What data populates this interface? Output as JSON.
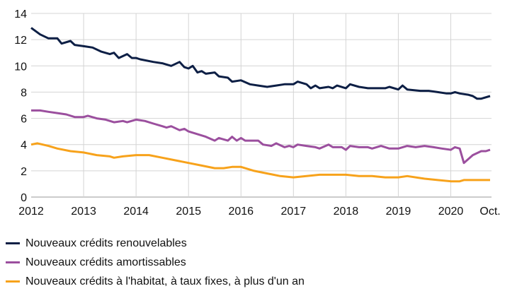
{
  "chart_data": {
    "type": "line",
    "title": "",
    "xlabel": "",
    "ylabel": "",
    "ylim": [
      0,
      14
    ],
    "xlim": [
      2012,
      2020.75
    ],
    "yticks": [
      0,
      2,
      4,
      6,
      8,
      10,
      12,
      14
    ],
    "xticks": [
      {
        "value": 2012,
        "label": "2012"
      },
      {
        "value": 2013,
        "label": "2013"
      },
      {
        "value": 2014,
        "label": "2014"
      },
      {
        "value": 2015,
        "label": "2015"
      },
      {
        "value": 2016,
        "label": "2016"
      },
      {
        "value": 2017,
        "label": "2017"
      },
      {
        "value": 2018,
        "label": "2018"
      },
      {
        "value": 2019,
        "label": "2019"
      },
      {
        "value": 2020,
        "label": "2020"
      },
      {
        "value": 2020.75,
        "label": "Oct."
      }
    ],
    "grid": true,
    "legend_position": "bottom",
    "series": [
      {
        "name": "Nouveaux crédits renouvelables",
        "color": "#0d1f45",
        "x": [
          2012,
          2012.17,
          2012.33,
          2012.5,
          2012.58,
          2012.75,
          2012.83,
          2013,
          2013.17,
          2013.33,
          2013.5,
          2013.58,
          2013.67,
          2013.83,
          2013.92,
          2014,
          2014.08,
          2014.33,
          2014.5,
          2014.67,
          2014.83,
          2014.92,
          2015,
          2015.08,
          2015.17,
          2015.25,
          2015.33,
          2015.5,
          2015.58,
          2015.75,
          2015.83,
          2016,
          2016.17,
          2016.33,
          2016.5,
          2016.67,
          2016.83,
          2017,
          2017.08,
          2017.25,
          2017.33,
          2017.42,
          2017.5,
          2017.67,
          2017.75,
          2017.83,
          2018,
          2018.08,
          2018.25,
          2018.42,
          2018.58,
          2018.75,
          2018.83,
          2019,
          2019.08,
          2019.17,
          2019.42,
          2019.58,
          2019.75,
          2019.92,
          2020,
          2020.08,
          2020.17,
          2020.33,
          2020.42,
          2020.5,
          2020.58,
          2020.75
        ],
        "values": [
          12.9,
          12.4,
          12.1,
          12.1,
          11.7,
          11.9,
          11.6,
          11.5,
          11.4,
          11.1,
          10.9,
          11.0,
          10.6,
          10.9,
          10.6,
          10.6,
          10.5,
          10.3,
          10.2,
          10.0,
          10.3,
          9.9,
          9.8,
          10.0,
          9.5,
          9.6,
          9.4,
          9.5,
          9.2,
          9.1,
          8.8,
          8.9,
          8.6,
          8.5,
          8.4,
          8.5,
          8.6,
          8.6,
          8.8,
          8.6,
          8.3,
          8.5,
          8.3,
          8.4,
          8.3,
          8.5,
          8.3,
          8.6,
          8.4,
          8.3,
          8.3,
          8.3,
          8.4,
          8.2,
          8.5,
          8.2,
          8.1,
          8.1,
          8.0,
          7.9,
          7.9,
          8.0,
          7.9,
          7.8,
          7.7,
          7.5,
          7.5,
          7.7
        ]
      },
      {
        "name": "Nouveaux crédits amortissables",
        "color": "#9b4f9e",
        "x": [
          2012,
          2012.17,
          2012.33,
          2012.5,
          2012.67,
          2012.83,
          2013,
          2013.08,
          2013.25,
          2013.42,
          2013.58,
          2013.75,
          2013.83,
          2014,
          2014.17,
          2014.33,
          2014.5,
          2014.58,
          2014.67,
          2014.83,
          2014.92,
          2015,
          2015.17,
          2015.33,
          2015.5,
          2015.58,
          2015.75,
          2015.83,
          2015.92,
          2016,
          2016.08,
          2016.33,
          2016.42,
          2016.58,
          2016.67,
          2016.83,
          2016.92,
          2017,
          2017.08,
          2017.25,
          2017.42,
          2017.5,
          2017.67,
          2017.75,
          2017.92,
          2018,
          2018.08,
          2018.25,
          2018.42,
          2018.5,
          2018.67,
          2018.83,
          2019,
          2019.17,
          2019.33,
          2019.5,
          2019.67,
          2019.83,
          2020,
          2020.08,
          2020.17,
          2020.25,
          2020.42,
          2020.58,
          2020.67,
          2020.75
        ],
        "values": [
          6.6,
          6.6,
          6.5,
          6.4,
          6.3,
          6.1,
          6.1,
          6.2,
          6.0,
          5.9,
          5.7,
          5.8,
          5.7,
          5.9,
          5.8,
          5.6,
          5.4,
          5.3,
          5.4,
          5.1,
          5.2,
          5.0,
          4.8,
          4.6,
          4.3,
          4.5,
          4.3,
          4.6,
          4.3,
          4.5,
          4.3,
          4.3,
          4.0,
          3.9,
          4.1,
          3.8,
          3.9,
          3.8,
          4.0,
          3.9,
          3.8,
          3.7,
          4.0,
          3.8,
          3.8,
          3.6,
          3.9,
          3.8,
          3.8,
          3.7,
          3.9,
          3.7,
          3.7,
          3.9,
          3.8,
          3.9,
          3.8,
          3.7,
          3.6,
          3.8,
          3.7,
          2.6,
          3.2,
          3.5,
          3.5,
          3.6
        ]
      },
      {
        "name": "Nouveaux crédits à l'habitat, à taux fixes, à plus d'un an",
        "color": "#f7a21b",
        "x": [
          2012,
          2012.12,
          2012.33,
          2012.5,
          2012.75,
          2013,
          2013.25,
          2013.5,
          2013.58,
          2013.75,
          2014,
          2014.25,
          2014.5,
          2014.75,
          2015,
          2015.25,
          2015.5,
          2015.67,
          2015.83,
          2016,
          2016.25,
          2016.5,
          2016.75,
          2017,
          2017.25,
          2017.5,
          2017.75,
          2018,
          2018.25,
          2018.5,
          2018.75,
          2019,
          2019.17,
          2019.5,
          2019.75,
          2020,
          2020.17,
          2020.25,
          2020.5,
          2020.75
        ],
        "values": [
          4.0,
          4.1,
          3.9,
          3.7,
          3.5,
          3.4,
          3.2,
          3.1,
          3.0,
          3.1,
          3.2,
          3.2,
          3.0,
          2.8,
          2.6,
          2.4,
          2.2,
          2.2,
          2.3,
          2.3,
          2.0,
          1.8,
          1.6,
          1.5,
          1.6,
          1.7,
          1.7,
          1.7,
          1.6,
          1.6,
          1.5,
          1.5,
          1.6,
          1.4,
          1.3,
          1.2,
          1.2,
          1.3,
          1.3,
          1.3
        ]
      }
    ]
  }
}
